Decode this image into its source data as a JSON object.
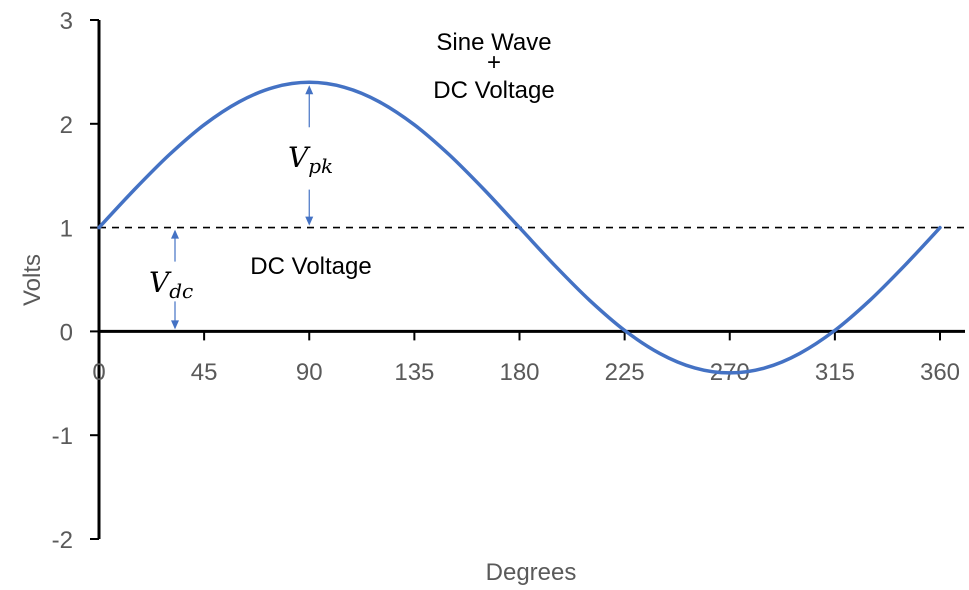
{
  "chart_data": {
    "type": "line",
    "xlabel": "Degrees",
    "ylabel": "Volts",
    "xlim": [
      0,
      360
    ],
    "ylim": [
      -2,
      3
    ],
    "x_ticks": [
      "0",
      "45",
      "90",
      "135",
      "180",
      "225",
      "270",
      "315",
      "360"
    ],
    "y_ticks": [
      "3",
      "2",
      "1",
      "0",
      "-1",
      "-2"
    ],
    "grid": false,
    "series": [
      {
        "color": "#4472C4",
        "x": [
          0,
          15,
          30,
          45,
          60,
          75,
          90,
          105,
          120,
          135,
          150,
          165,
          180,
          195,
          210,
          225,
          240,
          255,
          270,
          285,
          300,
          315,
          330,
          345,
          360
        ],
        "y": [
          1.0,
          1.362,
          1.7,
          1.99,
          2.212,
          2.352,
          2.4,
          2.352,
          2.212,
          1.99,
          1.7,
          1.362,
          1.0,
          0.638,
          0.3,
          0.01,
          -0.212,
          -0.352,
          -0.4,
          -0.352,
          -0.212,
          0.01,
          0.3,
          0.638,
          1.0
        ]
      }
    ],
    "dc_line": {
      "y": 1,
      "style": "dashed",
      "color": "#000000"
    },
    "annotations": {
      "title_line1": "Sine Wave",
      "title_line2": "+",
      "title_line3": "DC Voltage",
      "dc_label": "DC Voltage",
      "vpk_main": "V",
      "vpk_sub": "pk",
      "vdc_main": "V",
      "vdc_sub": "dc"
    },
    "arrow_color": "#4472C4"
  }
}
